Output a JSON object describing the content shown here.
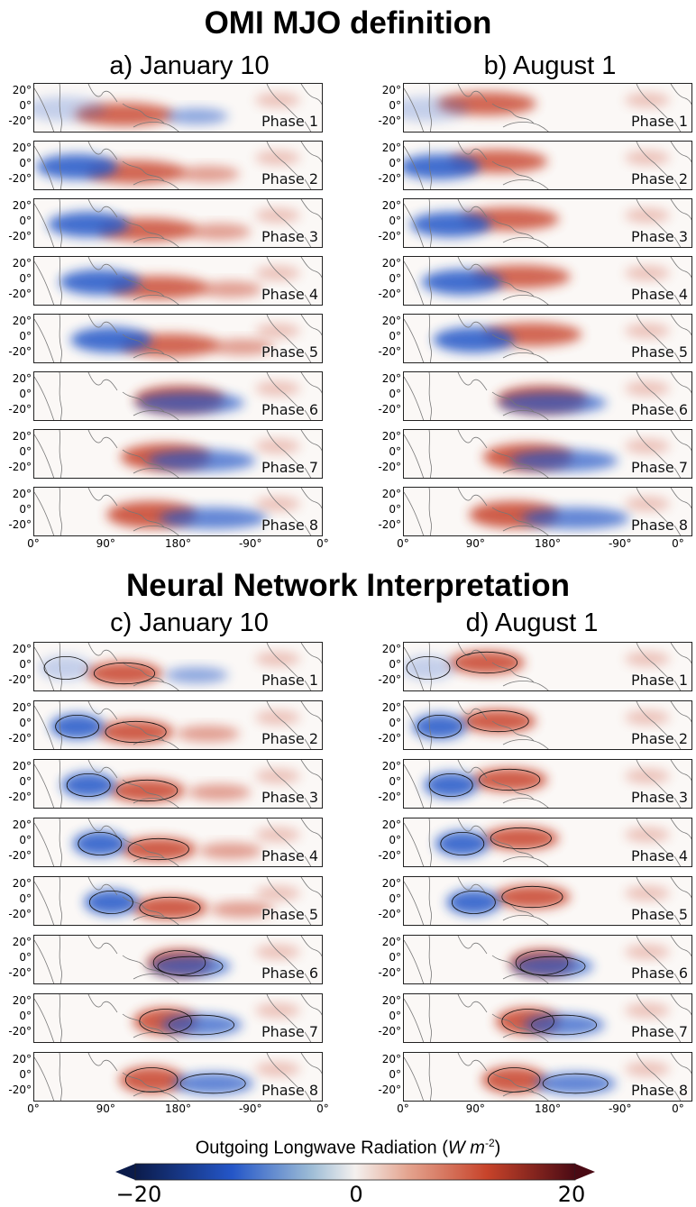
{
  "titles": {
    "top": "OMI MJO definition",
    "bottom": "Neural Network Interpretation"
  },
  "columns": {
    "a": "a) January 10",
    "b": "b) August 1",
    "c": "c) January 10",
    "d": "d) August 1"
  },
  "phases": [
    "Phase 1",
    "Phase 2",
    "Phase 3",
    "Phase 4",
    "Phase 5",
    "Phase 6",
    "Phase 7",
    "Phase 8"
  ],
  "y_ticks": [
    "20°",
    "0°",
    "-20°"
  ],
  "x_ticks": [
    "0°",
    "90°",
    "180°",
    "-90°",
    "0°"
  ],
  "colorbar": {
    "label_prefix": "Outgoing Longwave Radiation (",
    "label_unit_w": "W m",
    "label_exp": "-2",
    "label_suffix": ")",
    "ticks": [
      "−20",
      "0",
      "20"
    ],
    "min": -20,
    "max": 20,
    "colors": {
      "neg_extreme": "#0b1b4a",
      "neg": "#2456c8",
      "neutral": "#f4f1ef",
      "pos": "#c7432a",
      "pos_extreme": "#4a0a14"
    }
  }
}
